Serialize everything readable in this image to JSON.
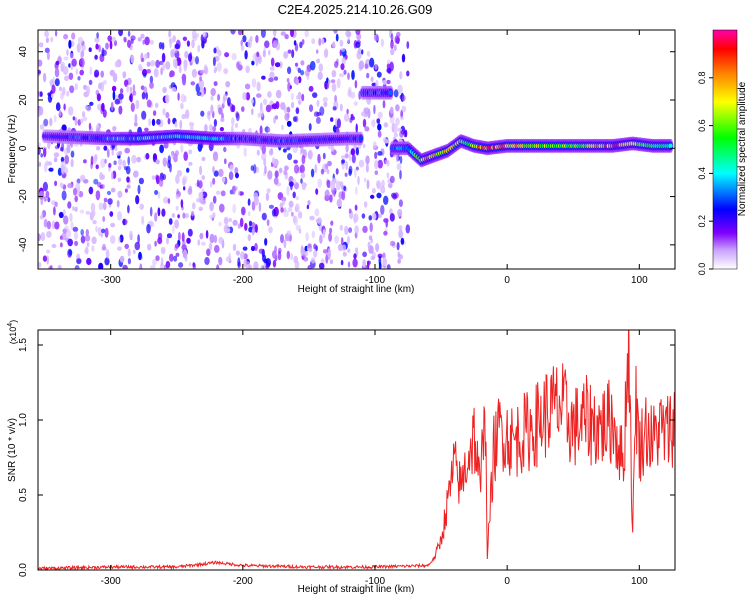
{
  "figure_title": "C2E4.2025.214.10.26.G09",
  "chart_data": [
    {
      "type": "heatmap",
      "xlabel": "Height of straight line (km)",
      "ylabel": "Frequency (Hz)",
      "xlim": [
        -355,
        127
      ],
      "ylim": [
        -50,
        49
      ],
      "xticks": [
        -300,
        -200,
        -100,
        0,
        100
      ],
      "xtick_labels": [
        "-300",
        "-200",
        "-100",
        "0",
        "100"
      ],
      "yticks": [
        -40,
        -20,
        0,
        20,
        40
      ],
      "ytick_labels": [
        "-40",
        "-20",
        "0",
        "20",
        "40"
      ],
      "colorbar": {
        "label": "Normalized spectral amplitude",
        "range": [
          0,
          1
        ],
        "ticks": [
          0,
          0.2,
          0.4,
          0.6,
          0.8
        ],
        "tick_labels": [
          "0.0",
          "0.2",
          "0.4",
          "0.6",
          "0.8"
        ],
        "colormap": [
          "#ffffff",
          "#8000ff",
          "#0000ff",
          "#00ffff",
          "#00ff00",
          "#ffff00",
          "#ff8000",
          "#ff0000",
          "#ff00aa"
        ]
      },
      "noise_region_x": [
        -355,
        -75
      ],
      "signal_band": [
        {
          "x": -350,
          "freq": 5,
          "amp": 0.25
        },
        {
          "x": -300,
          "freq": 4,
          "amp": 0.35
        },
        {
          "x": -280,
          "freq": 4,
          "amp": 0.4
        },
        {
          "x": -250,
          "freq": 5,
          "amp": 0.45
        },
        {
          "x": -220,
          "freq": 4,
          "amp": 0.4
        },
        {
          "x": -200,
          "freq": 4,
          "amp": 0.3
        },
        {
          "x": -170,
          "freq": 3,
          "amp": 0.3
        },
        {
          "x": -120,
          "freq": 4,
          "amp": 0.28
        },
        {
          "x": -100,
          "freq": 23,
          "amp": 0.3
        },
        {
          "x": -75,
          "freq": 0,
          "amp": 0.35
        },
        {
          "x": -65,
          "freq": -5,
          "amp": 0.75
        },
        {
          "x": -55,
          "freq": -3,
          "amp": 0.8
        },
        {
          "x": -45,
          "freq": -1,
          "amp": 0.7
        },
        {
          "x": -35,
          "freq": 3,
          "amp": 0.6
        },
        {
          "x": -25,
          "freq": 1,
          "amp": 0.7
        },
        {
          "x": -15,
          "freq": 0,
          "amp": 0.95
        },
        {
          "x": 0,
          "freq": 1,
          "amp": 0.8
        },
        {
          "x": 20,
          "freq": 1,
          "amp": 0.7
        },
        {
          "x": 40,
          "freq": 1,
          "amp": 0.6
        },
        {
          "x": 60,
          "freq": 1,
          "amp": 0.65
        },
        {
          "x": 80,
          "freq": 1,
          "amp": 0.95
        },
        {
          "x": 95,
          "freq": 2,
          "amp": 0.8
        },
        {
          "x": 110,
          "freq": 1,
          "amp": 0.55
        },
        {
          "x": 125,
          "freq": 1,
          "amp": 0.5
        }
      ]
    },
    {
      "type": "line",
      "xlabel": "Height of straight line (km)",
      "ylabel": "SNR (10 * v/v)",
      "y_multiplier_label": "(x10",
      "y_multiplier_exp": "4",
      "xlim": [
        -355,
        127
      ],
      "ylim": [
        0,
        1.6
      ],
      "xticks": [
        -300,
        -200,
        -100,
        0,
        100
      ],
      "xtick_labels": [
        "-300",
        "-200",
        "-100",
        "0",
        "100"
      ],
      "yticks": [
        0,
        0.5,
        1.0,
        1.5
      ],
      "ytick_labels": [
        "0.0",
        "0.5",
        "1.0",
        "1.5"
      ],
      "color": "#ee2222",
      "series": [
        {
          "x": [
            -355,
            -300,
            -250,
            -220,
            -200,
            -150,
            -100,
            -60,
            -55,
            -50,
            -45,
            -40,
            -35,
            -30,
            -25,
            -20,
            -17,
            -15,
            -10,
            -5,
            0,
            5,
            10,
            20,
            30,
            40,
            50,
            60,
            70,
            80,
            88,
            92,
            95,
            97,
            100,
            105,
            110,
            115,
            120,
            127
          ],
          "values": [
            0.01,
            0.02,
            0.02,
            0.05,
            0.03,
            0.02,
            0.02,
            0.03,
            0.08,
            0.2,
            0.45,
            0.7,
            0.55,
            0.75,
            0.9,
            0.5,
            1.3,
            0.1,
            0.8,
            0.95,
            0.9,
            0.85,
            0.9,
            0.95,
            1.05,
            1.1,
            0.95,
            1.0,
            0.95,
            1.0,
            0.7,
            1.6,
            0.2,
            1.2,
            0.8,
            0.95,
            0.85,
            0.95,
            0.9,
            1.0
          ]
        }
      ]
    }
  ]
}
